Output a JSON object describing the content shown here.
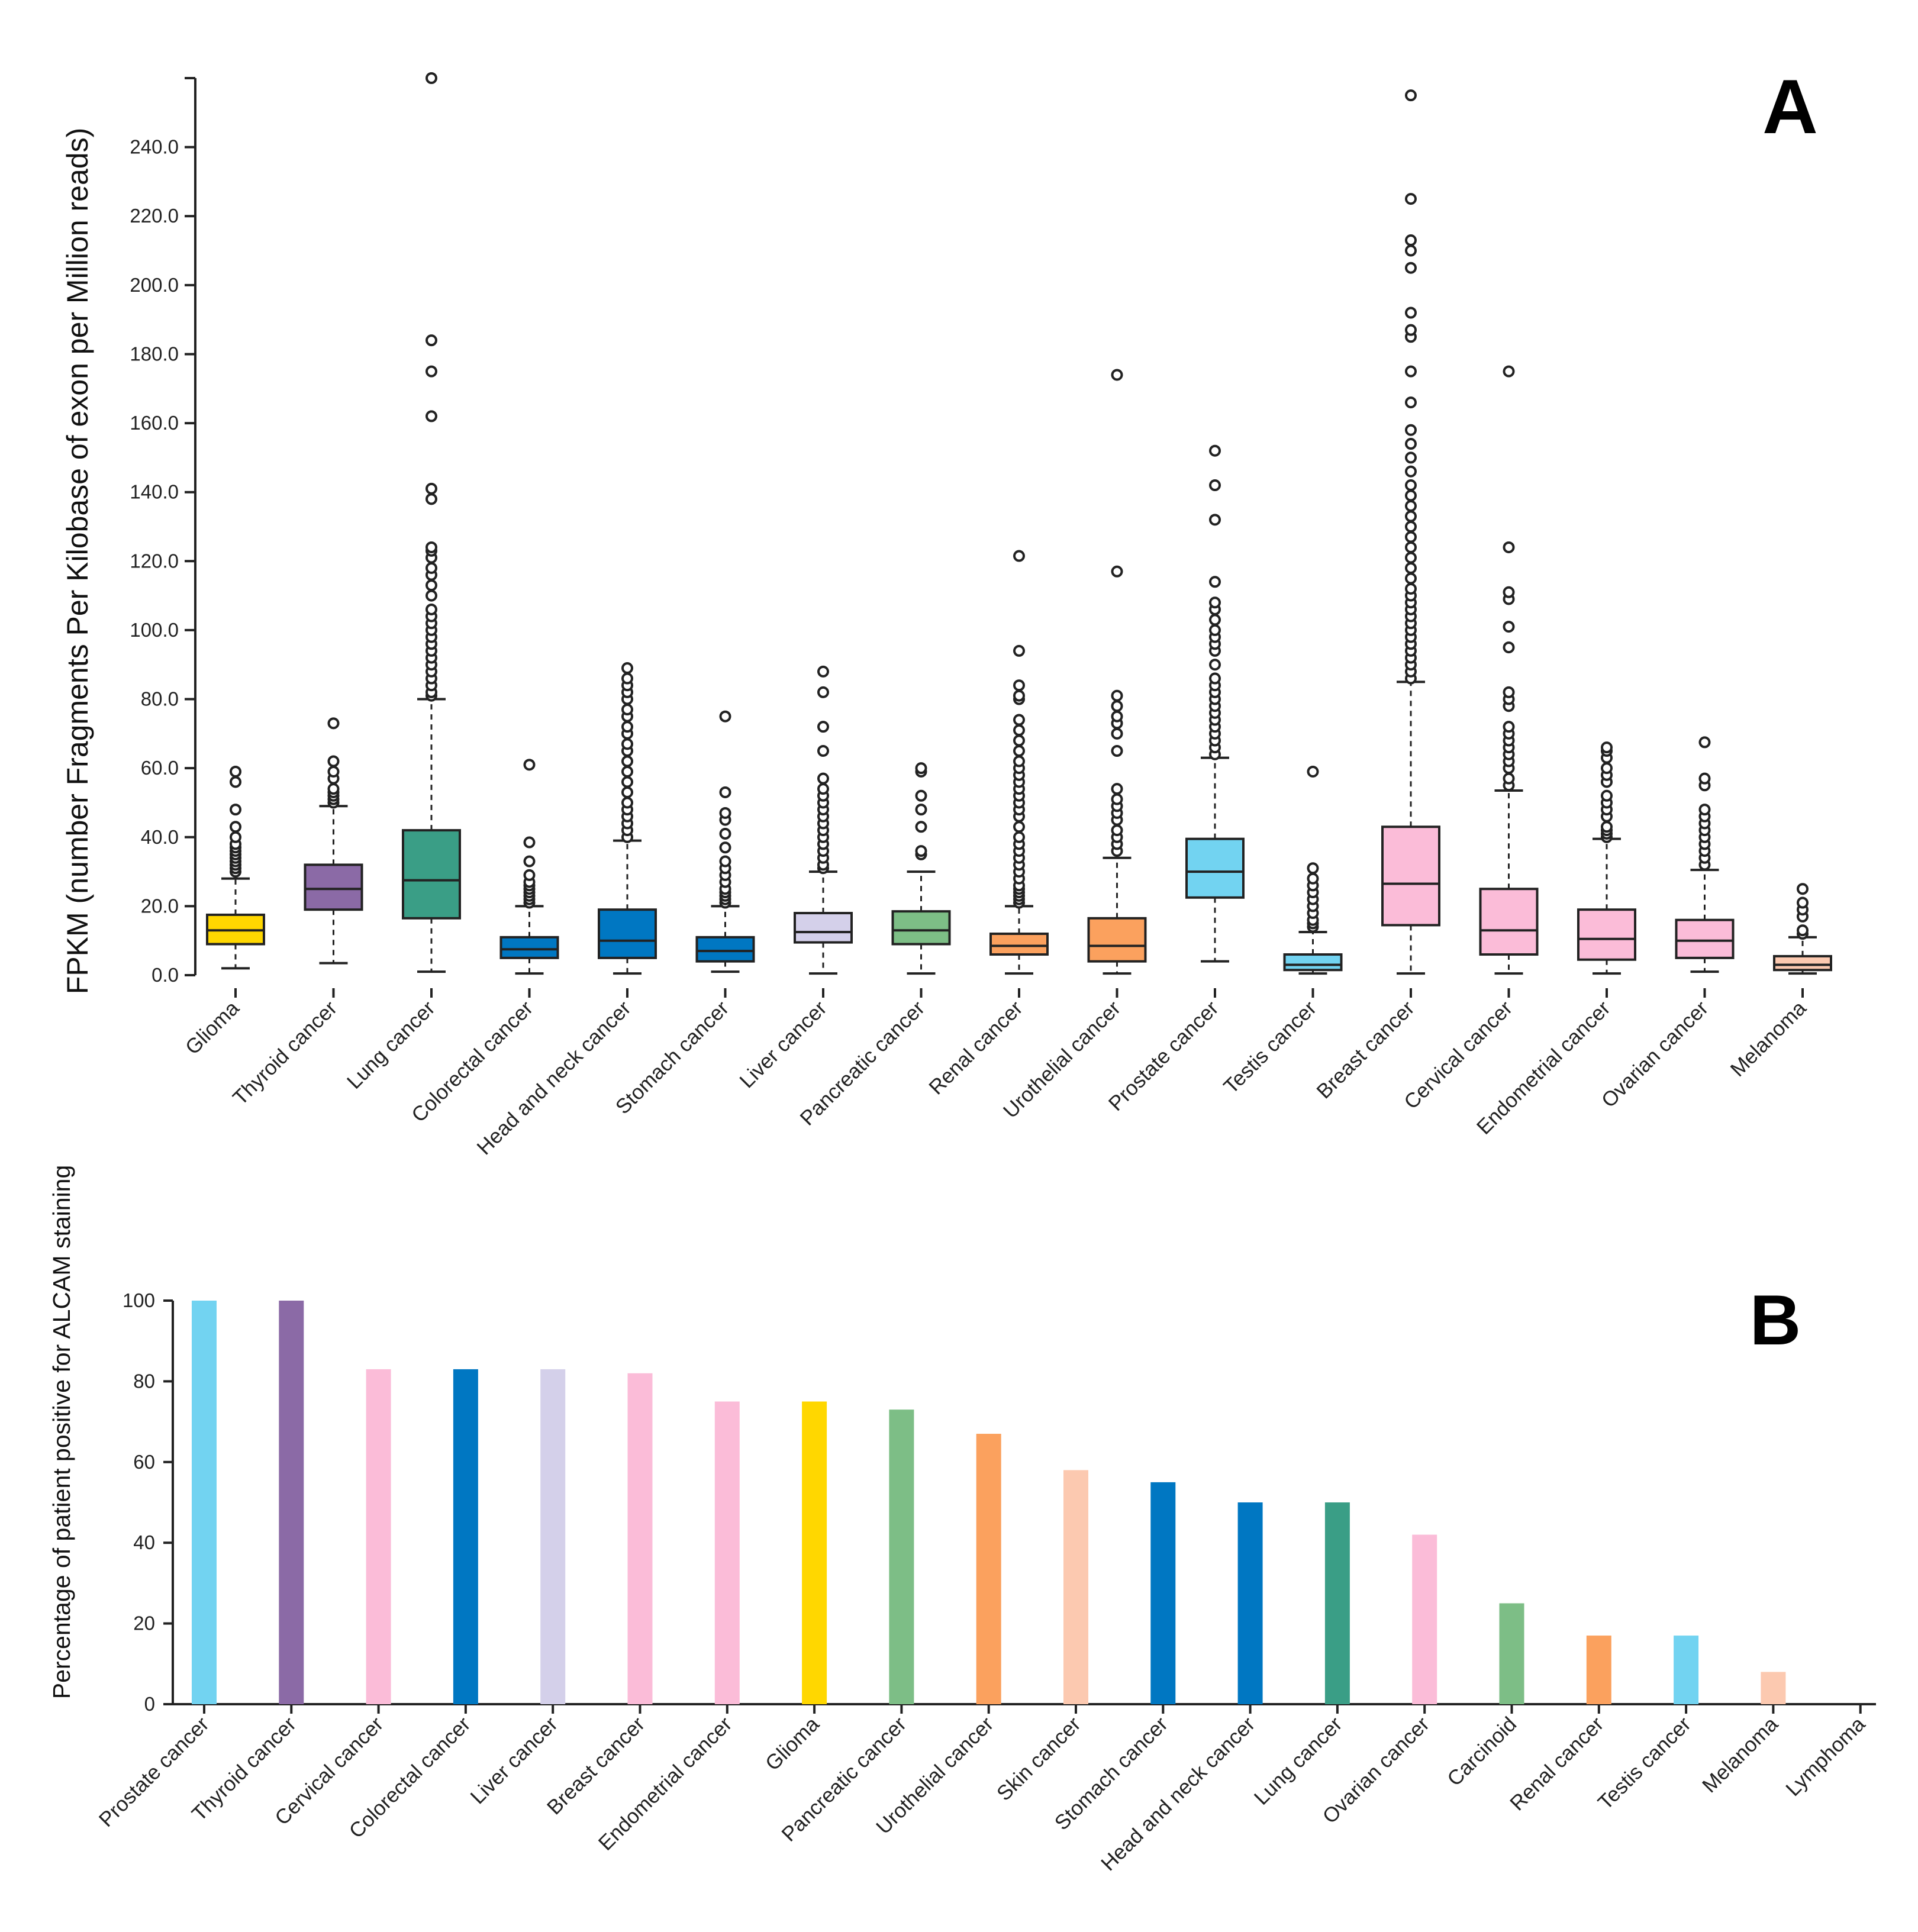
{
  "panel_a": {
    "letter": "A",
    "y_axis_title": "FPKM (number Fragments Per Kilobase of exon per Million reads)",
    "y_tick_labels": [
      "0.0",
      "20.0",
      "40.0",
      "60.0",
      "80.0",
      "100.0",
      "120.0",
      "140.0",
      "160.0",
      "180.0",
      "200.0",
      "220.0",
      "240.0"
    ]
  },
  "panel_b": {
    "letter": "B",
    "y_axis_title": "Percentage of patient positive for ALCAM staining",
    "y_tick_labels": [
      "0",
      "20",
      "40",
      "60",
      "80",
      "100"
    ]
  },
  "chart_data": [
    {
      "type": "box",
      "panel": "A",
      "title": "",
      "xlabel": "",
      "ylabel": "FPKM (number Fragments Per Kilobase of exon per Million reads)",
      "ylim": [
        0,
        260
      ],
      "y_ticks": [
        0,
        20,
        40,
        60,
        80,
        100,
        120,
        140,
        160,
        180,
        200,
        220,
        240
      ],
      "grid": false,
      "categories": [
        "Glioma",
        "Thyroid cancer",
        "Lung cancer",
        "Colorectal cancer",
        "Head and neck cancer",
        "Stomach cancer",
        "Liver cancer",
        "Pancreatic cancer",
        "Renal cancer",
        "Urothelial cancer",
        "Prostate cancer",
        "Testis cancer",
        "Breast cancer",
        "Cervical cancer",
        "Endometrial cancer",
        "Ovarian cancer",
        "Melanoma"
      ],
      "colors": [
        "#FFD700",
        "#8B6AA6",
        "#3A9E86",
        "#0077C2",
        "#0077C2",
        "#0077C2",
        "#D4D0EA",
        "#7DBE86",
        "#FBA15E",
        "#FBA15E",
        "#72D3F1",
        "#72D3F1",
        "#FBBCD8",
        "#FBBCD8",
        "#FBBCD8",
        "#FBBCD8",
        "#FCC9B0"
      ],
      "boxes": [
        {
          "min": 2,
          "q1": 9,
          "median": 13,
          "q3": 17.5,
          "max": 28,
          "outliers": [
            30,
            31,
            32,
            33,
            34,
            35,
            36,
            37,
            38,
            40,
            43,
            48,
            56,
            59
          ]
        },
        {
          "min": 3.5,
          "q1": 19,
          "median": 25,
          "q3": 32,
          "max": 49,
          "outliers": [
            50,
            51,
            52,
            53,
            54,
            57,
            59,
            62,
            73
          ]
        },
        {
          "min": 1,
          "q1": 16.5,
          "median": 27.5,
          "q3": 42,
          "max": 80,
          "outliers": [
            81,
            82,
            84,
            86,
            88,
            90,
            92,
            94,
            96,
            98,
            100,
            102,
            104,
            106,
            110,
            113,
            116,
            118,
            121,
            123,
            124,
            138,
            141,
            162,
            175,
            184,
            260
          ]
        },
        {
          "min": 0.5,
          "q1": 5,
          "median": 7.5,
          "q3": 11,
          "max": 20,
          "outliers": [
            21,
            22,
            23,
            24,
            25,
            26,
            27,
            29,
            33,
            38.5,
            61
          ]
        },
        {
          "min": 0.5,
          "q1": 5,
          "median": 10,
          "q3": 19,
          "max": 39,
          "outliers": [
            40,
            42,
            44,
            46,
            48,
            50,
            53,
            56,
            59,
            62,
            65,
            67,
            70,
            72,
            75,
            77,
            80,
            82,
            84,
            86,
            89
          ]
        },
        {
          "min": 1,
          "q1": 4,
          "median": 7,
          "q3": 11,
          "max": 20,
          "outliers": [
            21,
            22,
            23,
            24,
            25,
            27,
            29,
            31,
            33,
            37,
            41,
            45,
            47,
            53,
            75
          ]
        },
        {
          "min": 0.5,
          "q1": 9.5,
          "median": 12.5,
          "q3": 18,
          "max": 30,
          "outliers": [
            31,
            32,
            34,
            36,
            38,
            40,
            42,
            44,
            46,
            48,
            50,
            52,
            54,
            57,
            65,
            72,
            82,
            88
          ]
        },
        {
          "min": 0.5,
          "q1": 9,
          "median": 13,
          "q3": 18.5,
          "max": 30,
          "outliers": [
            35,
            36,
            43,
            48,
            52,
            59,
            60
          ]
        },
        {
          "min": 0.5,
          "q1": 6,
          "median": 8.5,
          "q3": 12,
          "max": 20,
          "outliers": [
            21,
            22,
            23,
            24,
            25,
            26,
            28,
            30,
            32,
            34,
            36,
            38,
            40,
            43,
            46,
            48,
            50,
            52,
            54,
            56,
            58,
            60,
            62,
            65,
            68,
            71,
            74,
            80,
            81,
            84,
            94,
            121.5
          ]
        },
        {
          "min": 0.5,
          "q1": 4,
          "median": 8.5,
          "q3": 16.5,
          "max": 34,
          "outliers": [
            36,
            38,
            40,
            42,
            45,
            47,
            49,
            51,
            54,
            65,
            70,
            73,
            75,
            78,
            81,
            117,
            174
          ]
        },
        {
          "min": 4,
          "q1": 22.5,
          "median": 30,
          "q3": 39.5,
          "max": 63,
          "outliers": [
            64,
            66,
            68,
            70,
            72,
            74,
            76,
            78,
            80,
            82,
            84,
            86,
            90,
            94,
            96,
            98,
            100,
            103,
            106,
            108,
            114,
            132,
            142,
            152
          ]
        },
        {
          "min": 0.5,
          "q1": 1.5,
          "median": 3,
          "q3": 6,
          "max": 12.5,
          "outliers": [
            14,
            15,
            16,
            18,
            20,
            22,
            24,
            26,
            28,
            31,
            59
          ]
        },
        {
          "min": 0.5,
          "q1": 14.5,
          "median": 26.5,
          "q3": 43,
          "max": 85,
          "outliers": [
            86,
            88,
            90,
            92,
            94,
            96,
            98,
            100,
            102,
            104,
            106,
            108,
            110,
            112,
            115,
            118,
            121,
            124,
            127,
            130,
            133,
            136,
            139,
            142,
            146,
            150,
            154,
            158,
            166,
            175,
            185,
            187,
            192,
            205,
            210,
            213,
            225,
            255
          ]
        },
        {
          "min": 0.5,
          "q1": 6,
          "median": 13,
          "q3": 25,
          "max": 53.5,
          "outliers": [
            55,
            57,
            60,
            62,
            64,
            66,
            68,
            70,
            72,
            78,
            80,
            82,
            95,
            101,
            109,
            111,
            124,
            175
          ]
        },
        {
          "min": 0.5,
          "q1": 4.5,
          "median": 10.5,
          "q3": 19,
          "max": 39.5,
          "outliers": [
            40,
            41,
            42,
            43,
            46,
            48,
            50,
            52,
            56,
            58,
            60,
            63,
            65,
            66
          ]
        },
        {
          "min": 1,
          "q1": 5,
          "median": 10,
          "q3": 16,
          "max": 30.5,
          "outliers": [
            32,
            34,
            36,
            38,
            40,
            42,
            44,
            46,
            48,
            55,
            57,
            67.5
          ]
        },
        {
          "min": 0.5,
          "q1": 1.5,
          "median": 3,
          "q3": 5.5,
          "max": 11,
          "outliers": [
            12,
            13,
            17,
            19,
            21,
            25
          ]
        }
      ]
    },
    {
      "type": "bar",
      "panel": "B",
      "title": "",
      "xlabel": "",
      "ylabel": "Percentage of patient positive for ALCAM staining",
      "ylim": [
        0,
        100
      ],
      "y_ticks": [
        0,
        20,
        40,
        60,
        80,
        100
      ],
      "grid": false,
      "categories": [
        "Prostate cancer",
        "Thyroid cancer",
        "Cervical cancer",
        "Colorectal cancer",
        "Liver cancer",
        "Breast cancer",
        "Endometrial cancer",
        "Glioma",
        "Pancreatic cancer",
        "Urothelial cancer",
        "Skin cancer",
        "Stomach cancer",
        "Head and neck cancer",
        "Lung cancer",
        "Ovarian cancer",
        "Carcinoid",
        "Renal cancer",
        "Testis cancer",
        "Melanoma",
        "Lymphoma"
      ],
      "values": [
        100,
        100,
        83,
        83,
        83,
        82,
        75,
        75,
        73,
        67,
        58,
        55,
        50,
        50,
        42,
        25,
        17,
        17,
        8,
        0
      ],
      "colors": [
        "#72D3F1",
        "#8B6AA6",
        "#FBBCD8",
        "#0077C2",
        "#D4D0EA",
        "#FBBCD8",
        "#FBBCD8",
        "#FFD700",
        "#7DBE86",
        "#FBA15E",
        "#FCC9B0",
        "#0077C2",
        "#0077C2",
        "#3A9E86",
        "#FBBCD8",
        "#7DBE86",
        "#FBA15E",
        "#72D3F1",
        "#FCC9B0",
        "#FFFFFF"
      ]
    }
  ]
}
